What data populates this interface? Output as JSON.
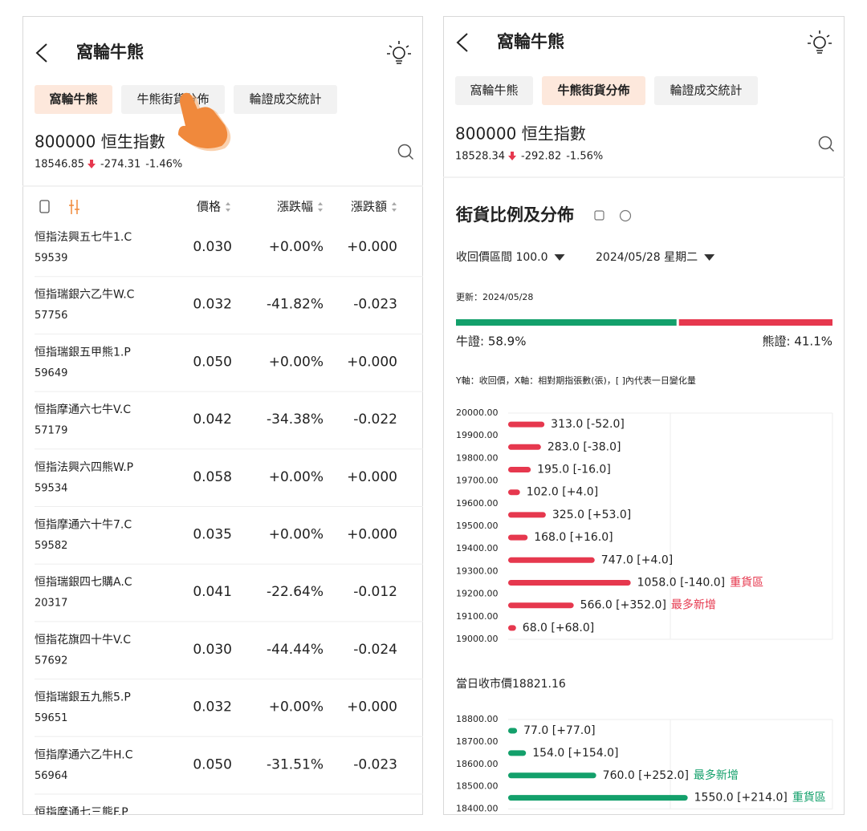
{
  "left_screen": {
    "header": {
      "title": "窩輪牛熊"
    },
    "tabs": [
      "窩輪牛熊",
      "牛熊街貨分佈",
      "輪證成交統計"
    ],
    "active_tab": 0,
    "stock": {
      "title": "800000 恒生指數",
      "price": "18546.85",
      "change": "-274.31",
      "change_pct": "-1.46%"
    },
    "table": {
      "columns": [
        "價格",
        "漲跌幅",
        "漲跌額"
      ],
      "rows": [
        {
          "name": "恒指法興五七牛1.C",
          "code": "59539",
          "price": "0.030",
          "pct": "+0.00%",
          "chg": "+0.000"
        },
        {
          "name": "恒指瑞銀六乙牛W.C",
          "code": "57756",
          "price": "0.032",
          "pct": "-41.82%",
          "chg": "-0.023"
        },
        {
          "name": "恒指瑞銀五甲熊1.P",
          "code": "59649",
          "price": "0.050",
          "pct": "+0.00%",
          "chg": "+0.000"
        },
        {
          "name": "恒指摩通六七牛V.C",
          "code": "57179",
          "price": "0.042",
          "pct": "-34.38%",
          "chg": "-0.022"
        },
        {
          "name": "恒指法興六四熊W.P",
          "code": "59534",
          "price": "0.058",
          "pct": "+0.00%",
          "chg": "+0.000"
        },
        {
          "name": "恒指摩通六十牛7.C",
          "code": "59582",
          "price": "0.035",
          "pct": "+0.00%",
          "chg": "+0.000"
        },
        {
          "name": "恒指瑞銀四七購A.C",
          "code": "20317",
          "price": "0.041",
          "pct": "-22.64%",
          "chg": "-0.012"
        },
        {
          "name": "恒指花旗四十牛V.C",
          "code": "57692",
          "price": "0.030",
          "pct": "-44.44%",
          "chg": "-0.024"
        },
        {
          "name": "恒指瑞銀五九熊5.P",
          "code": "59651",
          "price": "0.032",
          "pct": "+0.00%",
          "chg": "+0.000"
        },
        {
          "name": "恒指摩通六乙牛H.C",
          "code": "56964",
          "price": "0.050",
          "pct": "-31.51%",
          "chg": "-0.023"
        },
        {
          "name": "恒指摩通七三熊F.P"
        }
      ]
    }
  },
  "right_screen": {
    "header": {
      "title": "窩輪牛熊"
    },
    "tabs": [
      "窩輪牛熊",
      "牛熊街貨分佈",
      "輪證成交統計"
    ],
    "active_tab": 1,
    "stock": {
      "title": "800000 恒生指數",
      "price": "18528.34",
      "change": "-292.82",
      "change_pct": "-1.56%"
    },
    "section_title": "街貨比例及分佈",
    "filters": [
      "收回價區間 100.0",
      "2024/05/28 星期二"
    ],
    "updated": "更新：2024/05/28",
    "ratio": [
      {
        "value": 58.9,
        "label": "牛證: 58.9%",
        "color": "#13a06b"
      },
      {
        "value": 41.1,
        "label": "熊證: 41.1%",
        "color": "#e6384e"
      }
    ],
    "note": "Y軸：收回價，X軸：相對期指張數(張)，[ ]內代表一日變化量",
    "bear_chart": {
      "color": "#e6384e",
      "xlim": [
        0,
        2800
      ],
      "ylim": [
        19000,
        20000
      ],
      "yticks": [
        {
          "value": 20000,
          "label": "20000.00"
        },
        {
          "value": 19900,
          "label": "19900.00"
        },
        {
          "value": 19800,
          "label": "19800.00"
        },
        {
          "value": 19700,
          "label": "19700.00"
        },
        {
          "value": 19600,
          "label": "19600.00"
        },
        {
          "value": 19500,
          "label": "19500.00"
        },
        {
          "value": 19400,
          "label": "19400.00"
        },
        {
          "value": 19300,
          "label": "19300.00"
        },
        {
          "value": 19200,
          "label": "19200.00"
        },
        {
          "value": 19100,
          "label": "19100.00"
        },
        {
          "value": 19000,
          "label": "19000.00"
        }
      ],
      "bars": [
        {
          "value": 313,
          "label": "313.0 [-52.0]"
        },
        {
          "value": 283,
          "label": "283.0 [-38.0]"
        },
        {
          "value": 195,
          "label": "195.0 [-16.0]"
        },
        {
          "value": 102,
          "label": "102.0 [+4.0]"
        },
        {
          "value": 325,
          "label": "325.0 [+53.0]"
        },
        {
          "value": 168,
          "label": "168.0 [+16.0]"
        },
        {
          "value": 747,
          "label": "747.0 [+4.0]"
        },
        {
          "value": 1058,
          "label": "1058.0 [-140.0]",
          "tag": "重貨區"
        },
        {
          "value": 566,
          "label": "566.0 [+352.0]",
          "tag": "最多新增"
        },
        {
          "value": 68,
          "label": "68.0 [+68.0]"
        }
      ]
    },
    "close_price": "當日收市價18821.16",
    "bull_chart": {
      "color": "#13a06b",
      "xlim": [
        0,
        2800
      ],
      "ylim": [
        18400,
        18800
      ],
      "yticks": [
        {
          "value": 18800,
          "label": "18800.00"
        },
        {
          "value": 18700,
          "label": "18700.00"
        },
        {
          "value": 18600,
          "label": "18600.00"
        },
        {
          "value": 18500,
          "label": "18500.00"
        },
        {
          "value": 18400,
          "label": "18400.00"
        }
      ],
      "bars": [
        {
          "value": 77,
          "label": "77.0 [+77.0]"
        },
        {
          "value": 154,
          "label": "154.0 [+154.0]"
        },
        {
          "value": 760,
          "label": "760.0 [+252.0]",
          "tag": "最多新增"
        },
        {
          "value": 1550,
          "label": "1550.0 [+214.0]",
          "tag": "重貨區"
        }
      ]
    }
  }
}
